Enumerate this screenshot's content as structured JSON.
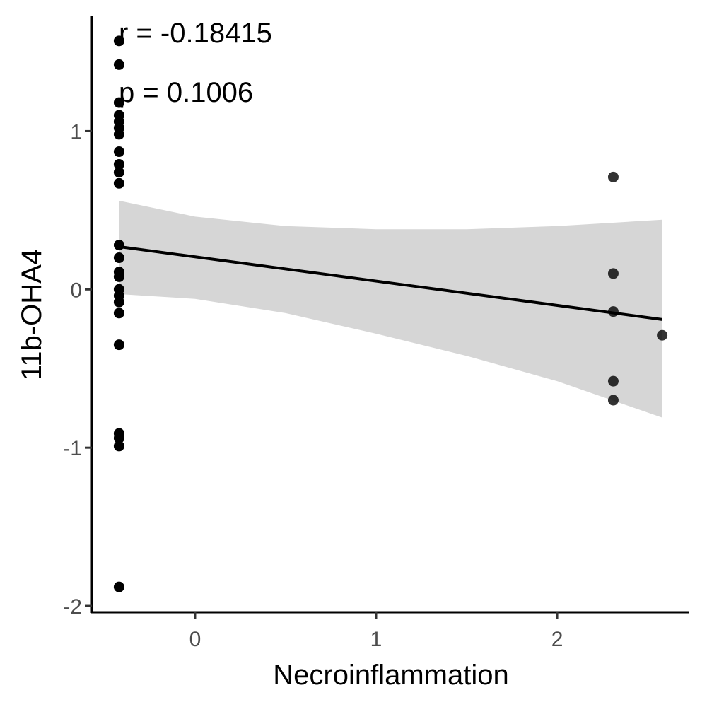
{
  "chart_data": {
    "type": "scatter",
    "title": "",
    "xlabel": "Necroinflammation",
    "ylabel": "11b-OHA4",
    "xlim": [
      -0.57,
      2.73
    ],
    "ylim": [
      -2.04,
      1.73
    ],
    "x_ticks": [
      0,
      1,
      2
    ],
    "y_ticks": [
      -2,
      -1,
      0,
      1
    ],
    "grid": false,
    "legend": "none",
    "annotations": [
      "r = -0.18415",
      "p = 0.1006"
    ],
    "points": [
      {
        "x": -0.42,
        "y": 1.57
      },
      {
        "x": -0.42,
        "y": 1.42
      },
      {
        "x": -0.42,
        "y": 1.18
      },
      {
        "x": -0.42,
        "y": 1.1
      },
      {
        "x": -0.42,
        "y": 1.06
      },
      {
        "x": -0.42,
        "y": 1.02
      },
      {
        "x": -0.42,
        "y": 0.98
      },
      {
        "x": -0.42,
        "y": 0.87
      },
      {
        "x": -0.42,
        "y": 0.79
      },
      {
        "x": -0.42,
        "y": 0.74
      },
      {
        "x": -0.42,
        "y": 0.67
      },
      {
        "x": -0.42,
        "y": 0.28
      },
      {
        "x": -0.42,
        "y": 0.2
      },
      {
        "x": -0.42,
        "y": 0.11
      },
      {
        "x": -0.42,
        "y": 0.08
      },
      {
        "x": -0.42,
        "y": 0.0
      },
      {
        "x": -0.42,
        "y": -0.04
      },
      {
        "x": -0.42,
        "y": -0.08
      },
      {
        "x": -0.42,
        "y": -0.15
      },
      {
        "x": -0.42,
        "y": -0.35
      },
      {
        "x": -0.42,
        "y": -0.91
      },
      {
        "x": -0.42,
        "y": -0.94
      },
      {
        "x": -0.42,
        "y": -0.99
      },
      {
        "x": -0.42,
        "y": -1.88
      },
      {
        "x": 2.31,
        "y": 0.71
      },
      {
        "x": 2.31,
        "y": 0.1
      },
      {
        "x": 2.31,
        "y": -0.14
      },
      {
        "x": 2.31,
        "y": -0.58
      },
      {
        "x": 2.31,
        "y": -0.7
      },
      {
        "x": 2.58,
        "y": -0.29
      }
    ],
    "fit_line": {
      "x": [
        -0.42,
        2.58
      ],
      "y": [
        0.27,
        -0.19
      ]
    },
    "confidence_band": {
      "x": [
        -0.42,
        0.0,
        0.5,
        1.0,
        1.5,
        2.0,
        2.58
      ],
      "lower": [
        -0.03,
        -0.06,
        -0.15,
        -0.28,
        -0.42,
        -0.58,
        -0.81
      ],
      "upper": [
        0.56,
        0.46,
        0.4,
        0.38,
        0.38,
        0.4,
        0.44
      ]
    },
    "colors": {
      "points": "#000000",
      "line": "#000000",
      "band": "#d6d6d6",
      "axis": "#000000",
      "tick_label": "#4d4d4d"
    }
  }
}
